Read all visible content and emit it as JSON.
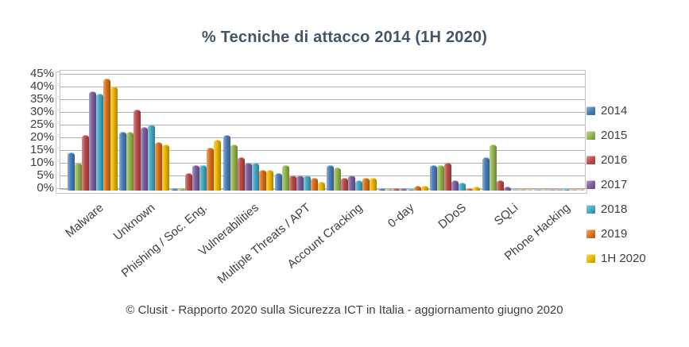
{
  "chart_data": {
    "type": "bar",
    "title": "% Tecniche di attacco 2014 (1H 2020)",
    "footer": "© Clusit - Rapporto 2020 sulla Sicurezza ICT in Italia - aggiornamento giugno 2020",
    "ylim": [
      0,
      45
    ],
    "ytick_step": 5,
    "y_tick_labels": [
      "0%",
      "5%",
      "10%",
      "15%",
      "20%",
      "25%",
      "30%",
      "35%",
      "40%",
      "45%"
    ],
    "grid": true,
    "legend_position": "right",
    "categories": [
      "Malware",
      "Unknown",
      "Phishing / Soc. Eng.",
      "Vulnerabilities",
      "Multiple Threats / APT",
      "Account Cracking",
      "0-day",
      "DDoS",
      "SQLi",
      "Phone Hacking"
    ],
    "series": [
      {
        "name": "2014",
        "color": "#4A7EBB",
        "values": [
          15,
          23,
          1,
          22,
          7,
          10,
          1,
          10,
          13,
          0.3
        ]
      },
      {
        "name": "2015",
        "color": "#94B64E",
        "values": [
          11,
          23,
          1,
          18,
          10,
          9,
          0.5,
          10,
          18,
          0.3
        ]
      },
      {
        "name": "2016",
        "color": "#BE4B48",
        "values": [
          22,
          32,
          7,
          13,
          6,
          5,
          1,
          11,
          4,
          0.3
        ]
      },
      {
        "name": "2017",
        "color": "#7D60A0",
        "values": [
          39,
          25,
          10,
          11,
          6,
          6,
          1,
          4,
          1.5,
          0.3
        ]
      },
      {
        "name": "2018",
        "color": "#45AAC5",
        "values": [
          38,
          26,
          10,
          11,
          6,
          4,
          0.5,
          3,
          0.3,
          0.5
        ]
      },
      {
        "name": "2019",
        "color": "#DB7119",
        "values": [
          44,
          19,
          17,
          8,
          5,
          5,
          2,
          1,
          0.3,
          0.3
        ]
      },
      {
        "name": "1H 2020",
        "color": "#EDB700",
        "values": [
          41,
          18,
          20,
          8,
          3.5,
          5,
          2,
          1.5,
          0.3,
          0.3
        ]
      }
    ]
  }
}
